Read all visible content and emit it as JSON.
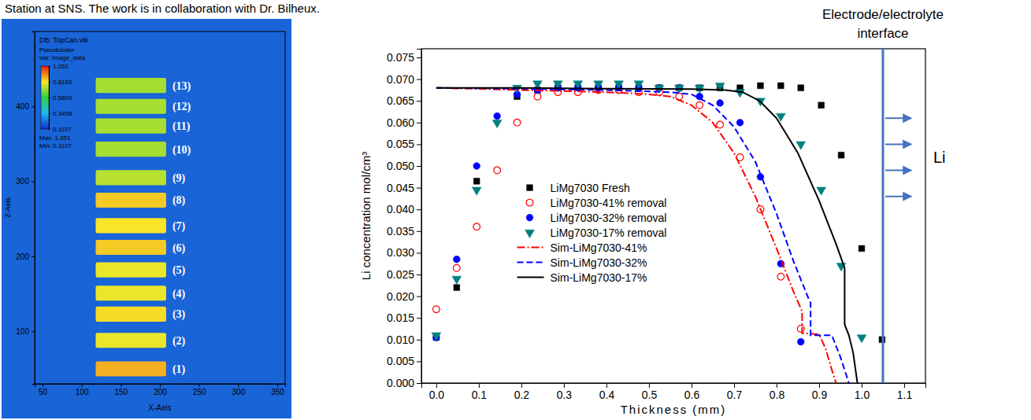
{
  "caption": "Station at SNS. The work is in collaboration with Dr. Bilheux.",
  "chart_data": [
    {
      "type": "image",
      "title": "DB: TopCan.vtk",
      "x_label": "X-Axis",
      "y_label": "Z-Axis",
      "xlim": [
        40,
        360
      ],
      "ylim": [
        30,
        500
      ],
      "xticks": [
        50,
        100,
        150,
        200,
        250,
        300,
        350
      ],
      "yticks": [
        100,
        200,
        300,
        400
      ],
      "colorbar": {
        "title": "Pseudocolor",
        "label": "Var: image_data",
        "range": [
          0.1107,
          1.051
        ],
        "ticks": [
          1.051,
          {
            "value": 0.816,
            "label": "0.8160"
          },
          0.5809,
          0.3458,
          0.1107
        ],
        "max_label": "Max: 1.051",
        "min_label": "Min: 0.1107"
      },
      "background_value": 0.2,
      "cells": {
        "labels": [
          "(1)",
          "(2)",
          "(3)",
          "(4)",
          "(5)",
          "(6)",
          "(7)",
          "(8)",
          "(9)",
          "(10)",
          "(11)",
          "(12)",
          "(13)"
        ],
        "x": [
          118,
          208
        ],
        "height": 20,
        "z": [
          50,
          88,
          123,
          151,
          182,
          212,
          241,
          275,
          305,
          343,
          374,
          400,
          428
        ],
        "values": [
          0.88,
          0.8,
          0.83,
          0.8,
          0.8,
          0.85,
          0.82,
          0.85,
          0.74,
          0.72,
          0.72,
          0.72,
          0.72
        ]
      }
    },
    {
      "type": "line",
      "x_label": "Thickness (mm)",
      "y_label": "Li concentration mol/cm³",
      "xlim": [
        -0.035,
        1.15
      ],
      "ylim": [
        0,
        0.077
      ],
      "xticks": [
        {
          "value": 0,
          "label": "0.0"
        },
        0.1,
        0.2,
        0.3,
        0.4,
        0.5,
        0.6,
        0.7,
        0.8,
        0.9,
        {
          "value": 1,
          "label": "1.0"
        },
        1.1
      ],
      "yticks": [
        {
          "value": 0,
          "label": "0.000"
        },
        0.005,
        {
          "value": 0.01,
          "label": "0.010"
        },
        0.015,
        {
          "value": 0.02,
          "label": "0.020"
        },
        0.025,
        {
          "value": 0.03,
          "label": "0.030"
        },
        0.035,
        {
          "value": 0.04,
          "label": "0.040"
        },
        0.045,
        {
          "value": 0.05,
          "label": "0.050"
        },
        0.055,
        {
          "value": 0.06,
          "label": "0.060"
        },
        0.065,
        {
          "value": 0.07,
          "label": "0.070"
        },
        0.075
      ],
      "legend": "center",
      "series": [
        {
          "name": "LiMg7030 Fresh",
          "type": "scatter",
          "marker": "square",
          "color": "#000000",
          "x": [
            0,
            0.048,
            0.095,
            0.19,
            0.238,
            0.286,
            0.333,
            0.381,
            0.429,
            0.476,
            0.524,
            0.571,
            0.619,
            0.667,
            0.714,
            0.762,
            0.81,
            0.857,
            0.905,
            0.952,
            1.0,
            1.048
          ],
          "values": [
            0.0105,
            0.022,
            0.0465,
            0.066,
            0.0675,
            0.068,
            0.068,
            0.068,
            0.068,
            0.068,
            0.068,
            0.068,
            0.068,
            0.068,
            0.068,
            0.0685,
            0.0685,
            0.068,
            0.064,
            0.0525,
            0.031,
            0.01
          ]
        },
        {
          "name": "LiMg7030-41% removal",
          "type": "scatter",
          "marker": "circle-open",
          "color": "#ff0000",
          "x": [
            0,
            0.048,
            0.095,
            0.143,
            0.19,
            0.238,
            0.286,
            0.333,
            0.381,
            0.429,
            0.476,
            0.524,
            0.571,
            0.619,
            0.667,
            0.714,
            0.762,
            0.81,
            0.857
          ],
          "values": [
            0.017,
            0.0265,
            0.036,
            0.049,
            0.06,
            0.066,
            0.067,
            0.067,
            0.0675,
            0.0675,
            0.067,
            0.067,
            0.066,
            0.064,
            0.0595,
            0.052,
            0.04,
            0.0245,
            0.0125
          ]
        },
        {
          "name": "LiMg7030-32% removal",
          "type": "scatter",
          "marker": "circle",
          "color": "#0000ff",
          "x": [
            0,
            0.048,
            0.095,
            0.143,
            0.19,
            0.238,
            0.286,
            0.333,
            0.381,
            0.429,
            0.476,
            0.524,
            0.571,
            0.619,
            0.667,
            0.714,
            0.762,
            0.81,
            0.857
          ],
          "values": [
            0.0105,
            0.0285,
            0.05,
            0.0615,
            0.0665,
            0.0675,
            0.068,
            0.068,
            0.068,
            0.068,
            0.068,
            0.068,
            0.068,
            0.066,
            0.0645,
            0.06,
            0.0475,
            0.0275,
            0.0095
          ]
        },
        {
          "name": "LiMg7030-17% removal",
          "type": "scatter",
          "marker": "triangle-down",
          "color": "#008080",
          "x": [
            0,
            0.048,
            0.095,
            0.143,
            0.19,
            0.238,
            0.286,
            0.333,
            0.381,
            0.429,
            0.476,
            0.524,
            0.571,
            0.619,
            0.667,
            0.714,
            0.762,
            0.81,
            0.857,
            0.905,
            0.952,
            1.0
          ],
          "values": [
            0.011,
            0.024,
            0.0445,
            0.06,
            0.068,
            0.069,
            0.069,
            0.069,
            0.069,
            0.069,
            0.069,
            0.068,
            0.068,
            0.068,
            0.0685,
            0.067,
            0.065,
            0.0615,
            0.055,
            0.0445,
            0.027,
            0.0105
          ]
        },
        {
          "name": "Sim-LiMg7030-41%",
          "type": "line",
          "line_style": "dashdot",
          "color": "#ff0000",
          "x": [
            0,
            0.2,
            0.4,
            0.5,
            0.55,
            0.6,
            0.65,
            0.7,
            0.75,
            0.8,
            0.84,
            0.86,
            0.86,
            0.9,
            0.915,
            0.93,
            0.94
          ],
          "values": [
            0.068,
            0.0675,
            0.067,
            0.0665,
            0.066,
            0.064,
            0.06,
            0.053,
            0.043,
            0.031,
            0.021,
            0.0165,
            0.0115,
            0.0112,
            0.008,
            0.003,
            0
          ]
        },
        {
          "name": "Sim-LiMg7030-32%",
          "type": "line",
          "line_style": "dashed",
          "color": "#0000ff",
          "x": [
            0,
            0.2,
            0.4,
            0.55,
            0.6,
            0.65,
            0.7,
            0.75,
            0.8,
            0.84,
            0.875,
            0.88,
            0.88,
            0.93,
            0.95,
            0.97
          ],
          "values": [
            0.068,
            0.0678,
            0.0675,
            0.067,
            0.0665,
            0.064,
            0.059,
            0.051,
            0.039,
            0.028,
            0.0195,
            0.0185,
            0.011,
            0.011,
            0.006,
            0
          ]
        },
        {
          "name": "Sim-LiMg7030-17%",
          "type": "line",
          "line_style": "solid",
          "color": "#000000",
          "x": [
            0,
            0.2,
            0.4,
            0.6,
            0.68,
            0.72,
            0.76,
            0.8,
            0.85,
            0.9,
            0.94,
            0.96,
            0.96,
            0.97,
            0.98,
            0.99
          ],
          "values": [
            0.068,
            0.068,
            0.0678,
            0.0677,
            0.0675,
            0.067,
            0.065,
            0.061,
            0.053,
            0.042,
            0.032,
            0.0265,
            0.0135,
            0.011,
            0.007,
            0
          ]
        }
      ],
      "annotations": [
        {
          "text": "Electrode/electrolyte interface",
          "x": 1.05,
          "color": "#4472c4"
        },
        {
          "text": "Li"
        }
      ]
    }
  ]
}
